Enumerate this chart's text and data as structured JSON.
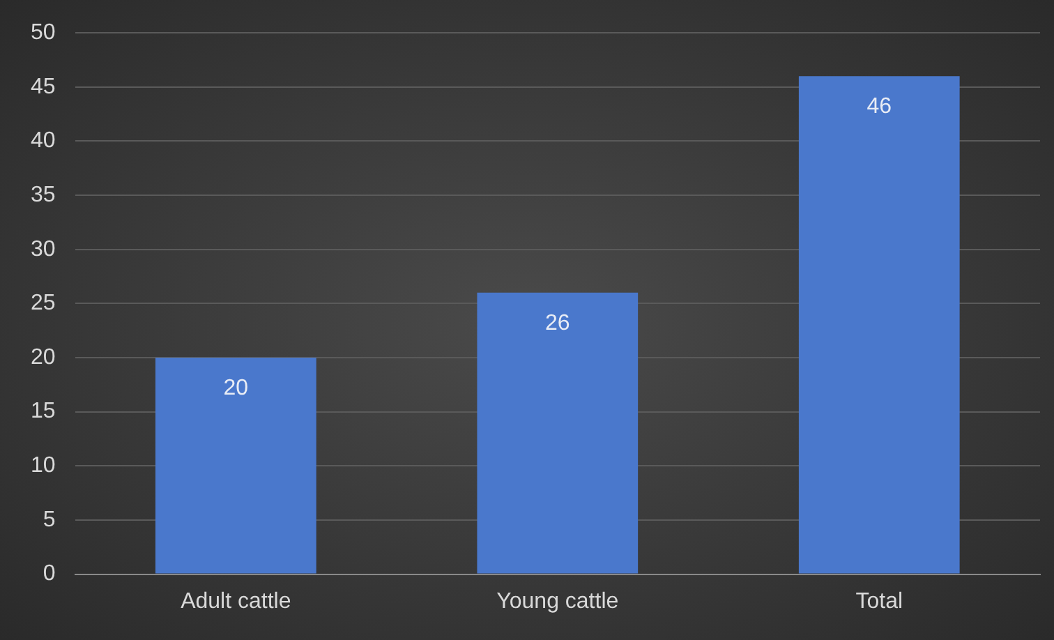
{
  "chart_data": {
    "type": "bar",
    "categories": [
      "Adult cattle",
      "Young cattle",
      "Total"
    ],
    "values": [
      20,
      26,
      46
    ],
    "color": "#4a78cc",
    "ylim": [
      0,
      50
    ],
    "yticks": [
      0,
      5,
      10,
      15,
      20,
      25,
      30,
      35,
      40,
      45,
      50
    ],
    "grid": "y",
    "data_labels": true,
    "legend": false
  }
}
